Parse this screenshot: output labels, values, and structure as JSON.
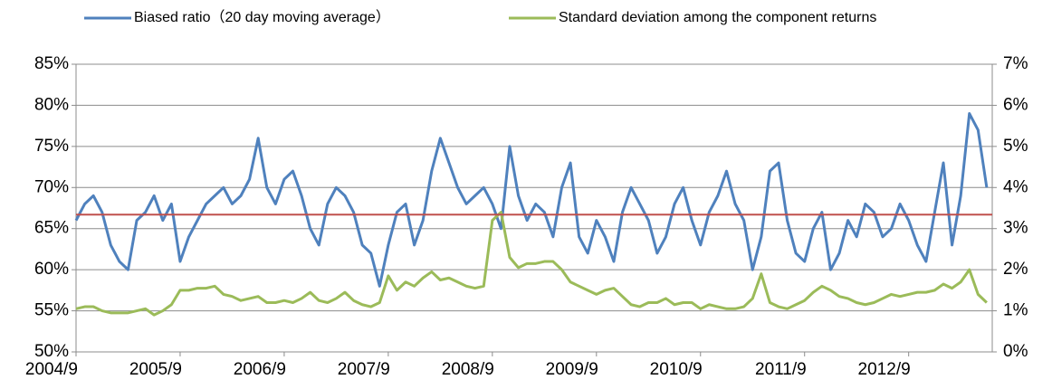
{
  "chart_data": {
    "type": "line",
    "categories": [
      "2004/9",
      null,
      null,
      null,
      null,
      null,
      null,
      null,
      null,
      null,
      null,
      null,
      "2005/9",
      null,
      null,
      null,
      null,
      null,
      null,
      null,
      null,
      null,
      null,
      null,
      "2006/9",
      null,
      null,
      null,
      null,
      null,
      null,
      null,
      null,
      null,
      null,
      null,
      "2007/9",
      null,
      null,
      null,
      null,
      null,
      null,
      null,
      null,
      null,
      null,
      null,
      "2008/9",
      null,
      null,
      null,
      null,
      null,
      null,
      null,
      null,
      null,
      null,
      null,
      "2009/9",
      null,
      null,
      null,
      null,
      null,
      null,
      null,
      null,
      null,
      null,
      null,
      "2010/9",
      null,
      null,
      null,
      null,
      null,
      null,
      null,
      null,
      null,
      null,
      null,
      "2011/9",
      null,
      null,
      null,
      null,
      null,
      null,
      null,
      null,
      null,
      null,
      null,
      "2012/9",
      null,
      null,
      null,
      null,
      null,
      null,
      null,
      null,
      null
    ],
    "series": [
      {
        "name": "Biased ratio（20 day moving average）",
        "color": "#4f81bd",
        "values": [
          66,
          68,
          69,
          67,
          63,
          61,
          60,
          66,
          67,
          69,
          66,
          68,
          61,
          64,
          66,
          68,
          69,
          70,
          68,
          69,
          71,
          76,
          70,
          68,
          71,
          72,
          69,
          65,
          63,
          68,
          70,
          69,
          67,
          63,
          62,
          58,
          63,
          67,
          68,
          63,
          66,
          72,
          76,
          73,
          70,
          68,
          69,
          70,
          68,
          65,
          75,
          69,
          66,
          68,
          67,
          64,
          70,
          73,
          64,
          62,
          66,
          64,
          61,
          67,
          70,
          68,
          66,
          62,
          64,
          68,
          70,
          66,
          63,
          67,
          69,
          72,
          68,
          66,
          60,
          64,
          72,
          73,
          66,
          62,
          61,
          65,
          67,
          60,
          62,
          66,
          64,
          68,
          67,
          64,
          65,
          68,
          66,
          63,
          61,
          67,
          73,
          63,
          69,
          79,
          77,
          70
        ]
      },
      {
        "name": "Standard deviation among the component returns",
        "color": "#9bbb59",
        "axis": "y2",
        "values": [
          1.05,
          1.1,
          1.1,
          1.0,
          0.95,
          0.95,
          0.95,
          1.0,
          1.05,
          0.9,
          1.0,
          1.15,
          1.5,
          1.5,
          1.55,
          1.55,
          1.6,
          1.4,
          1.35,
          1.25,
          1.3,
          1.35,
          1.2,
          1.2,
          1.25,
          1.2,
          1.3,
          1.45,
          1.25,
          1.2,
          1.3,
          1.45,
          1.25,
          1.15,
          1.1,
          1.2,
          1.85,
          1.5,
          1.7,
          1.6,
          1.8,
          1.95,
          1.75,
          1.8,
          1.7,
          1.6,
          1.55,
          1.6,
          3.2,
          3.4,
          2.3,
          2.05,
          2.15,
          2.15,
          2.2,
          2.2,
          2.0,
          1.7,
          1.6,
          1.5,
          1.4,
          1.5,
          1.55,
          1.35,
          1.15,
          1.1,
          1.2,
          1.2,
          1.3,
          1.15,
          1.2,
          1.2,
          1.05,
          1.15,
          1.1,
          1.05,
          1.05,
          1.1,
          1.3,
          1.9,
          1.2,
          1.1,
          1.05,
          1.15,
          1.25,
          1.45,
          1.6,
          1.5,
          1.35,
          1.3,
          1.2,
          1.15,
          1.2,
          1.3,
          1.4,
          1.35,
          1.4,
          1.45,
          1.45,
          1.5,
          1.65,
          1.55,
          1.7,
          2.0,
          1.4,
          1.2
        ]
      }
    ],
    "reference_line": {
      "value": 66.7,
      "color": "#c0504d"
    },
    "ylim": [
      50,
      85
    ],
    "yticks": [
      {
        "value": 50,
        "label": "50%"
      },
      {
        "value": 55,
        "label": "55%"
      },
      {
        "value": 60,
        "label": "60%"
      },
      {
        "value": 65,
        "label": "65%"
      },
      {
        "value": 70,
        "label": "70%"
      },
      {
        "value": 75,
        "label": "75%"
      },
      {
        "value": 80,
        "label": "80%"
      },
      {
        "value": 85,
        "label": "85%"
      }
    ],
    "y2lim": [
      0,
      7
    ],
    "y2ticks": [
      {
        "value": 0,
        "label": "0%"
      },
      {
        "value": 1,
        "label": "1%"
      },
      {
        "value": 2,
        "label": "2%"
      },
      {
        "value": 3,
        "label": "3%"
      },
      {
        "value": 4,
        "label": "4%"
      },
      {
        "value": 5,
        "label": "5%"
      },
      {
        "value": 6,
        "label": "6%"
      },
      {
        "value": 7,
        "label": "7%"
      }
    ],
    "grid": true,
    "legend": "top"
  }
}
